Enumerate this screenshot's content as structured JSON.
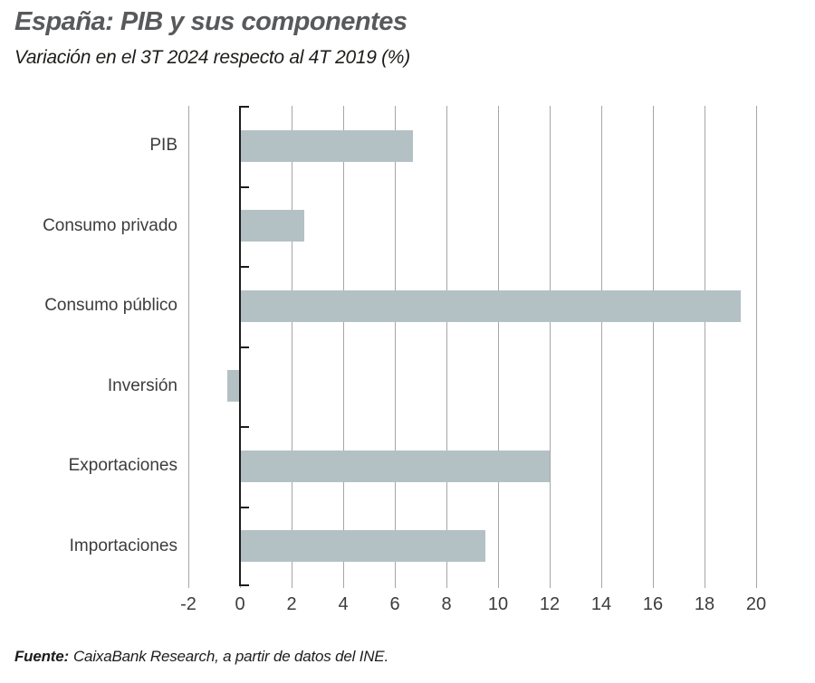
{
  "header": {
    "title": "España: PIB y sus componentes",
    "subtitle": "Variación en el 3T 2024 respecto al 4T 2019 (%)"
  },
  "chart_data": {
    "type": "bar",
    "orientation": "horizontal",
    "title": "España: PIB y sus componentes",
    "subtitle": "Variación en el 3T 2024 respecto al 4T 2019 (%)",
    "categories": [
      "PIB",
      "Consumo privado",
      "Consumo público",
      "Inversión",
      "Exportaciones",
      "Importaciones"
    ],
    "values": [
      6.7,
      2.5,
      19.4,
      -0.5,
      12.0,
      9.5
    ],
    "xlabel": "",
    "ylabel": "",
    "xlim": [
      -2,
      20
    ],
    "xticks": [
      -2,
      0,
      2,
      4,
      6,
      8,
      10,
      12,
      14,
      16,
      18,
      20
    ],
    "grid": true,
    "legend": false
  },
  "colors": {
    "bar": "#b4c1c4",
    "grid": "#a6a6a6",
    "axis": "#1d1d1b",
    "title": "#58595b",
    "subtitle": "#1d1d1b",
    "text": "#3c3c3b"
  },
  "footer": {
    "source_label": "Fuente:",
    "source_text": "CaixaBank Research, a partir de datos del INE."
  }
}
